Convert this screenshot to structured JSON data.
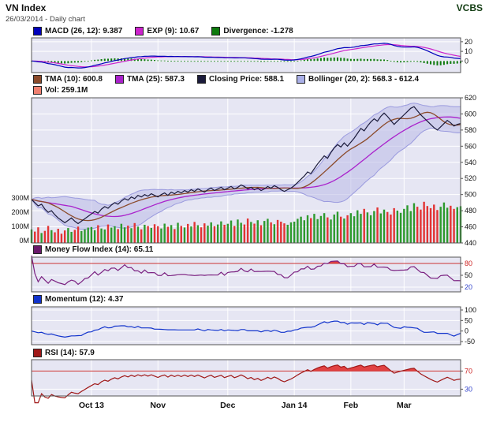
{
  "header": {
    "title": "VN Index",
    "subtitle": "26/03/2014 - Daily chart",
    "brand": "VCBS"
  },
  "colors": {
    "panel_bg": "#e6e6f3",
    "grid": "#ffffff",
    "border": "#555555",
    "macd_line": "#0000bb",
    "macd_signal": "#cc22cc",
    "macd_hist": "#0d7a0d",
    "tma10": "#8b4a2a",
    "tma25": "#aa22cc",
    "close": "#1a1a3a",
    "bollinger_fill": "#b9b9e6",
    "bollinger_edge": "#9a9ade",
    "vol_up": "#2d9a2d",
    "vol_down": "#e23333",
    "mfi_line": "#7a2080",
    "momentum_line": "#1133cc",
    "rsi_line": "#a01818",
    "threshold": "#cc3333",
    "overbought_fill": "#e03030",
    "axis_text": "#111111",
    "tick_red": "#cc2222",
    "tick_blue": "#3344cc"
  },
  "panels": {
    "macd": {
      "legend": [
        {
          "label": "MACD (26, 12): 9.387",
          "color": "#0000bb"
        },
        {
          "label": "EXP (9): 10.67",
          "color": "#cc22cc"
        },
        {
          "label": "Divergence: -1.278",
          "color": "#0d7a0d"
        }
      ],
      "ticks": [
        {
          "v": 20,
          "color": "#111111"
        },
        {
          "v": 10,
          "color": "#111111"
        },
        {
          "v": 0,
          "color": "#111111"
        }
      ]
    },
    "price": {
      "legend_row1": [
        {
          "label": "TMA (10): 600.8",
          "color": "#8b4a2a"
        },
        {
          "label": "TMA (25): 587.3",
          "color": "#aa22cc"
        },
        {
          "label": "Closing Price: 588.1",
          "color": "#1a1a3a"
        },
        {
          "label": "Bollinger (20, 2): 568.3 - 612.4",
          "color": "#aab0e8"
        }
      ],
      "legend_row2": [
        {
          "label": "Vol: 259.1M",
          "color": "#f08070"
        }
      ],
      "right_ticks": [
        620,
        600,
        580,
        560,
        540,
        520,
        500,
        480,
        460,
        440
      ],
      "left_ticks": [
        {
          "label": "300M",
          "v": 300
        },
        {
          "label": "200M",
          "v": 200
        },
        {
          "label": "100M",
          "v": 100
        },
        {
          "label": "0M",
          "v": 0
        }
      ]
    },
    "mfi": {
      "legend": [
        {
          "label": "Money Flow Index (14): 65.11",
          "color": "#6a1a6a"
        }
      ],
      "ticks": [
        {
          "v": 80,
          "color": "#cc2222"
        },
        {
          "v": 50,
          "color": "#111111"
        },
        {
          "v": 20,
          "color": "#3344cc"
        }
      ]
    },
    "momentum": {
      "legend": [
        {
          "label": "Momentum (12): 4.37",
          "color": "#1133cc"
        }
      ],
      "ticks": [
        {
          "v": 100,
          "color": "#111111"
        },
        {
          "v": 50,
          "color": "#111111"
        },
        {
          "v": 0,
          "color": "#111111"
        },
        {
          "v": -50,
          "color": "#111111"
        }
      ]
    },
    "rsi": {
      "legend": [
        {
          "label": "RSI (14): 57.9",
          "color": "#a01818"
        }
      ],
      "ticks": [
        {
          "v": 70,
          "color": "#cc2222"
        },
        {
          "v": 30,
          "color": "#3344cc"
        }
      ]
    }
  },
  "x_axis": {
    "labels": [
      {
        "text": "Oct 13",
        "index": 18
      },
      {
        "text": "Nov",
        "index": 38
      },
      {
        "text": "Dec",
        "index": 59
      },
      {
        "text": "Jan 14",
        "index": 79
      },
      {
        "text": "Feb",
        "index": 96
      },
      {
        "text": "Mar",
        "index": 112
      }
    ]
  },
  "chart_data": {
    "type": "line",
    "title": "VN Index - Daily chart - 26/03/2014",
    "x_labels": [
      "Oct 13",
      "Nov",
      "Dec",
      "Jan 14",
      "Feb",
      "Mar"
    ],
    "price_axis": {
      "min": 440,
      "max": 620,
      "step": 20
    },
    "volume_axis": {
      "min": 0,
      "max": 300,
      "unit": "M"
    },
    "close": [
      494,
      490,
      486,
      488,
      482,
      478,
      480,
      475,
      471,
      468,
      465,
      468,
      471,
      467,
      464,
      467,
      470,
      473,
      476,
      479,
      477,
      482,
      485,
      483,
      487,
      490,
      488,
      492,
      495,
      493,
      497,
      495,
      499,
      497,
      500,
      498,
      501,
      499,
      497,
      500,
      502,
      499,
      503,
      501,
      504,
      502,
      505,
      503,
      506,
      504,
      507,
      505,
      503,
      506,
      508,
      505,
      507,
      509,
      506,
      508,
      510,
      507,
      509,
      512,
      510,
      507,
      509,
      506,
      508,
      505,
      507,
      510,
      508,
      511,
      509,
      506,
      504,
      506,
      508,
      511,
      515,
      519,
      523,
      528,
      526,
      532,
      538,
      543,
      548,
      545,
      552,
      558,
      562,
      559,
      564,
      560,
      565,
      570,
      576,
      582,
      579,
      585,
      590,
      594,
      591,
      597,
      601,
      597,
      592,
      587,
      591,
      595,
      599,
      603,
      607,
      609,
      604,
      599,
      595,
      591,
      587,
      583,
      580,
      584,
      588,
      592,
      589,
      585,
      587,
      588.1
    ],
    "volume_millions": [
      95,
      80,
      110,
      70,
      85,
      120,
      90,
      75,
      100,
      65,
      88,
      105,
      78,
      92,
      115,
      84,
      96,
      108,
      112,
      90,
      125,
      102,
      95,
      130,
      108,
      118,
      98,
      135,
      110,
      122,
      104,
      140,
      115,
      96,
      128,
      119,
      106,
      132,
      118,
      102,
      136,
      114,
      126,
      98,
      142,
      120,
      109,
      134,
      116,
      148,
      125,
      110,
      138,
      122,
      145,
      118,
      130,
      152,
      128,
      135,
      158,
      120,
      165,
      142,
      130,
      172,
      148,
      136,
      160,
      125,
      155,
      170,
      145,
      132,
      162,
      150,
      138,
      128,
      145,
      150,
      170,
      185,
      160,
      195,
      175,
      205,
      168,
      190,
      210,
      180,
      165,
      200,
      220,
      185,
      172,
      195,
      210,
      188,
      230,
      205,
      240,
      215,
      195,
      225,
      250,
      208,
      235,
      218,
      200,
      245,
      228,
      212,
      240,
      265,
      225,
      280,
      255,
      235,
      290,
      260,
      245,
      270,
      232,
      255,
      285,
      248,
      262,
      240,
      252,
      259
    ],
    "indicators": {
      "macd": {
        "slow": 26,
        "fast": 12,
        "signal": 9,
        "current": 9.387,
        "signal_current": 10.67,
        "divergence_current": -1.278,
        "axis": {
          "min": -12,
          "max": 24,
          "ticks": [
            20,
            10,
            0
          ]
        }
      },
      "tma10": {
        "period": 10,
        "current": 600.8
      },
      "tma25": {
        "period": 25,
        "current": 587.3
      },
      "closing_price_current": 588.1,
      "bollinger": {
        "period": 20,
        "mult": 2,
        "current_range": "568.3 - 612.4"
      },
      "volume_current": "259.1M",
      "mfi": {
        "period": 14,
        "current": 65.11,
        "overbought": 80,
        "axis": {
          "min": 8,
          "max": 96,
          "ticks": [
            80,
            50,
            20
          ]
        }
      },
      "momentum": {
        "period": 12,
        "current": 4.37,
        "axis": {
          "min": -65,
          "max": 115,
          "ticks": [
            100,
            50,
            0,
            -50
          ]
        }
      },
      "rsi": {
        "period": 14,
        "current": 57.9,
        "overbought": 70,
        "axis": {
          "min": 15,
          "max": 95,
          "ticks": [
            70,
            30
          ]
        }
      }
    }
  }
}
